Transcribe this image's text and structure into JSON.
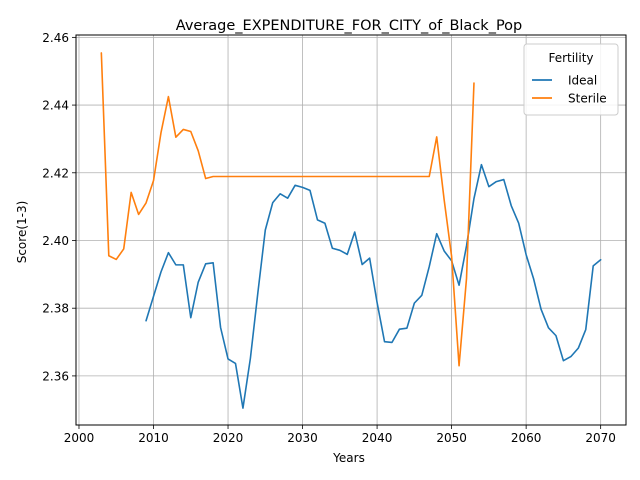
{
  "chart_data": {
    "type": "line",
    "title": "Average_EXPENDITURE_FOR_CITY_of_Black_Pop",
    "xlabel": "Years",
    "ylabel": "Score(1-3)",
    "xlim": [
      1999.6,
      2073.4
    ],
    "ylim": [
      2.3455,
      2.4607
    ],
    "xticks": [
      2000,
      2010,
      2020,
      2030,
      2040,
      2050,
      2060,
      2070
    ],
    "yticks": [
      2.36,
      2.38,
      2.4,
      2.42,
      2.44,
      2.46
    ],
    "ytick_labels": [
      "2.36",
      "2.38",
      "2.40",
      "2.42",
      "2.44",
      "2.46"
    ],
    "grid": true,
    "legend": {
      "title": "Fertility",
      "position": "top-right"
    },
    "series": [
      {
        "name": "Ideal",
        "color": "#1f77b4",
        "x": [
          2009,
          2010,
          2011,
          2012,
          2013,
          2014,
          2015,
          2016,
          2017,
          2018,
          2019,
          2020,
          2021,
          2022,
          2023,
          2024,
          2025,
          2026,
          2027,
          2028,
          2029,
          2030,
          2031,
          2032,
          2033,
          2034,
          2035,
          2036,
          2037,
          2038,
          2039,
          2040,
          2041,
          2042,
          2043,
          2044,
          2045,
          2046,
          2047,
          2048,
          2049,
          2050,
          2051,
          2052,
          2053,
          2054,
          2055,
          2056,
          2057,
          2058,
          2059,
          2060,
          2061,
          2062,
          2063,
          2064,
          2065,
          2066,
          2067,
          2068,
          2069,
          2070
        ],
        "values": [
          2.3763,
          2.3835,
          2.3907,
          2.3964,
          2.3928,
          2.3928,
          2.3772,
          2.3877,
          2.3931,
          2.3934,
          2.3743,
          2.365,
          2.3637,
          2.3505,
          2.3652,
          2.3845,
          2.4031,
          2.4112,
          2.4138,
          2.4125,
          2.4163,
          2.4157,
          2.4148,
          2.4061,
          2.4051,
          2.3977,
          2.3971,
          2.3959,
          2.4025,
          2.3929,
          2.3948,
          2.3817,
          2.3701,
          2.3699,
          2.3738,
          2.3741,
          2.3815,
          2.3838,
          2.3923,
          2.402,
          2.3969,
          2.394,
          2.3868,
          2.3984,
          2.4124,
          2.4224,
          2.4159,
          2.4174,
          2.418,
          2.4103,
          2.4051,
          2.3958,
          2.3887,
          2.3797,
          2.3742,
          2.3719,
          2.3645,
          2.3657,
          2.3682,
          2.3737,
          2.3925,
          2.3943
        ]
      },
      {
        "name": "Sterile",
        "color": "#ff7f0e",
        "x": [
          2003,
          2004,
          2005,
          2006,
          2007,
          2008,
          2009,
          2010,
          2011,
          2012,
          2013,
          2014,
          2015,
          2016,
          2017,
          2018,
          2019,
          2020,
          2021,
          2022,
          2023,
          2024,
          2025,
          2026,
          2027,
          2028,
          2029,
          2030,
          2031,
          2032,
          2033,
          2034,
          2035,
          2036,
          2037,
          2038,
          2039,
          2040,
          2041,
          2042,
          2043,
          2044,
          2045,
          2046,
          2047,
          2048,
          2049,
          2050,
          2051,
          2052,
          2053
        ],
        "values": [
          2.4554,
          2.3955,
          2.3944,
          2.3975,
          2.4142,
          2.4077,
          2.4111,
          2.4177,
          2.4318,
          2.4425,
          2.4305,
          2.4328,
          2.4322,
          2.4265,
          2.4183,
          2.4189,
          2.4189,
          2.4189,
          2.4189,
          2.4189,
          2.4189,
          2.4189,
          2.4189,
          2.4189,
          2.4189,
          2.4189,
          2.4189,
          2.4189,
          2.4189,
          2.4189,
          2.4189,
          2.4189,
          2.4189,
          2.4189,
          2.4189,
          2.4189,
          2.4189,
          2.4189,
          2.4189,
          2.4189,
          2.4189,
          2.4189,
          2.4189,
          2.4189,
          2.4189,
          2.4306,
          2.412,
          2.3953,
          2.363,
          2.3888,
          2.4465
        ]
      }
    ]
  }
}
